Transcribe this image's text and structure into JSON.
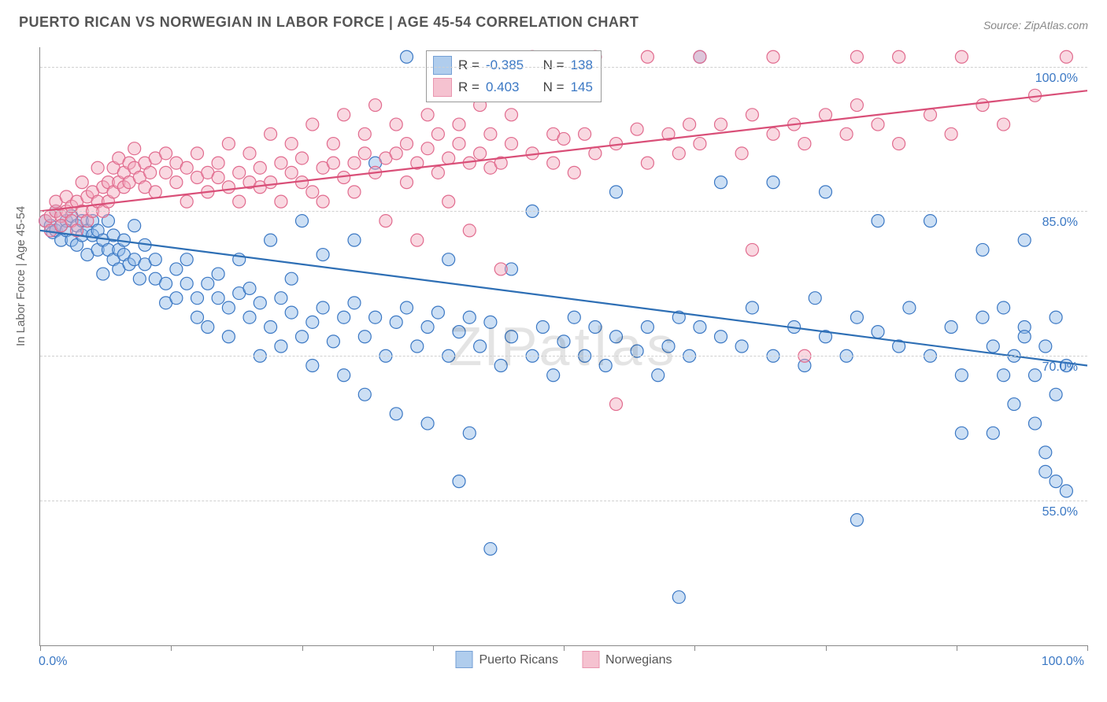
{
  "title": "PUERTO RICAN VS NORWEGIAN IN LABOR FORCE | AGE 45-54 CORRELATION CHART",
  "source": "Source: ZipAtlas.com",
  "ylabel": "In Labor Force | Age 45-54",
  "watermark_a": "ZIP",
  "watermark_b": "atlas",
  "chart": {
    "type": "scatter-with-regression",
    "xlim": [
      0,
      100
    ],
    "ylim": [
      40,
      102
    ],
    "yticks": [
      55.0,
      70.0,
      85.0,
      100.0
    ],
    "ytick_labels": [
      "55.0%",
      "70.0%",
      "85.0%",
      "100.0%"
    ],
    "xtick_positions": [
      0,
      12.5,
      25,
      37.5,
      50,
      62.5,
      75,
      87.5,
      100
    ],
    "xmin_label": "0.0%",
    "xmax_label": "100.0%",
    "background_color": "#ffffff",
    "grid_color": "#d0d0d0",
    "axis_color": "#888888",
    "marker_radius": 8,
    "marker_stroke_width": 1.2,
    "line_width": 2.2,
    "series": [
      {
        "name": "Puerto Ricans",
        "fill": "#8fb8e6",
        "fill_opacity": 0.45,
        "stroke": "#3b78c4",
        "line_color": "#2e6fb5",
        "R": "-0.385",
        "N": "138",
        "regression": {
          "x1": 0,
          "y1": 83.0,
          "x2": 100,
          "y2": 69.0
        },
        "points": [
          [
            0.5,
            84
          ],
          [
            1,
            83.5
          ],
          [
            1.2,
            82.8
          ],
          [
            1.5,
            83
          ],
          [
            1.5,
            85
          ],
          [
            2,
            83.5
          ],
          [
            2,
            82
          ],
          [
            2.5,
            84
          ],
          [
            2.5,
            83
          ],
          [
            3,
            82
          ],
          [
            3,
            84.5
          ],
          [
            3.5,
            83.5
          ],
          [
            3.5,
            81.5
          ],
          [
            4,
            82.5
          ],
          [
            4,
            84
          ],
          [
            4.5,
            83
          ],
          [
            4.5,
            80.5
          ],
          [
            5,
            82.5
          ],
          [
            5,
            84
          ],
          [
            5.5,
            81
          ],
          [
            5.5,
            83
          ],
          [
            6,
            82
          ],
          [
            6,
            78.5
          ],
          [
            6.5,
            81
          ],
          [
            6.5,
            84
          ],
          [
            7,
            80
          ],
          [
            7,
            82.5
          ],
          [
            7.5,
            81
          ],
          [
            7.5,
            79
          ],
          [
            8,
            80.5
          ],
          [
            8,
            82
          ],
          [
            8.5,
            79.5
          ],
          [
            9,
            80
          ],
          [
            9,
            83.5
          ],
          [
            9.5,
            78
          ],
          [
            10,
            79.5
          ],
          [
            10,
            81.5
          ],
          [
            11,
            78
          ],
          [
            11,
            80
          ],
          [
            12,
            77.5
          ],
          [
            12,
            75.5
          ],
          [
            13,
            79
          ],
          [
            13,
            76
          ],
          [
            14,
            77.5
          ],
          [
            14,
            80
          ],
          [
            15,
            76
          ],
          [
            15,
            74
          ],
          [
            16,
            77.5
          ],
          [
            16,
            73
          ],
          [
            17,
            76
          ],
          [
            17,
            78.5
          ],
          [
            18,
            75
          ],
          [
            18,
            72
          ],
          [
            19,
            76.5
          ],
          [
            19,
            80
          ],
          [
            20,
            74
          ],
          [
            20,
            77
          ],
          [
            21,
            75.5
          ],
          [
            21,
            70
          ],
          [
            22,
            73
          ],
          [
            22,
            82
          ],
          [
            23,
            76
          ],
          [
            23,
            71
          ],
          [
            24,
            74.5
          ],
          [
            24,
            78
          ],
          [
            25,
            72
          ],
          [
            25,
            84
          ],
          [
            26,
            73.5
          ],
          [
            26,
            69
          ],
          [
            27,
            75
          ],
          [
            27,
            80.5
          ],
          [
            28,
            71.5
          ],
          [
            29,
            74
          ],
          [
            29,
            68
          ],
          [
            30,
            75.5
          ],
          [
            30,
            82
          ],
          [
            31,
            72
          ],
          [
            31,
            66
          ],
          [
            32,
            74
          ],
          [
            32,
            90
          ],
          [
            33,
            70
          ],
          [
            34,
            73.5
          ],
          [
            34,
            64
          ],
          [
            35,
            75
          ],
          [
            35,
            101
          ],
          [
            36,
            71
          ],
          [
            37,
            73
          ],
          [
            37,
            63
          ],
          [
            38,
            74.5
          ],
          [
            39,
            70
          ],
          [
            39,
            80
          ],
          [
            40,
            72.5
          ],
          [
            40,
            57
          ],
          [
            41,
            74
          ],
          [
            41,
            62
          ],
          [
            42,
            71
          ],
          [
            43,
            73.5
          ],
          [
            43,
            50
          ],
          [
            44,
            69
          ],
          [
            45,
            72
          ],
          [
            45,
            79
          ],
          [
            47,
            70
          ],
          [
            47,
            85
          ],
          [
            48,
            73
          ],
          [
            49,
            68
          ],
          [
            50,
            71.5
          ],
          [
            51,
            74
          ],
          [
            52,
            70
          ],
          [
            53,
            73
          ],
          [
            54,
            69
          ],
          [
            55,
            72
          ],
          [
            55,
            87
          ],
          [
            57,
            70.5
          ],
          [
            58,
            73
          ],
          [
            59,
            68
          ],
          [
            60,
            71
          ],
          [
            61,
            74
          ],
          [
            61,
            45
          ],
          [
            62,
            70
          ],
          [
            63,
            73
          ],
          [
            63,
            101
          ],
          [
            65,
            72
          ],
          [
            65,
            88
          ],
          [
            67,
            71
          ],
          [
            68,
            75
          ],
          [
            70,
            70
          ],
          [
            70,
            88
          ],
          [
            72,
            73
          ],
          [
            73,
            69
          ],
          [
            74,
            76
          ],
          [
            75,
            72
          ],
          [
            75,
            87
          ],
          [
            77,
            70
          ],
          [
            78,
            74
          ],
          [
            78,
            53
          ],
          [
            80,
            72.5
          ],
          [
            80,
            84
          ],
          [
            82,
            71
          ],
          [
            83,
            75
          ],
          [
            85,
            70
          ],
          [
            85,
            84
          ],
          [
            87,
            73
          ],
          [
            88,
            68
          ],
          [
            88,
            62
          ],
          [
            90,
            74
          ],
          [
            90,
            81
          ],
          [
            91,
            71
          ],
          [
            91,
            62
          ],
          [
            92,
            75
          ],
          [
            92,
            68
          ],
          [
            93,
            70
          ],
          [
            93,
            65
          ],
          [
            94,
            73
          ],
          [
            94,
            72
          ],
          [
            94,
            82
          ],
          [
            95,
            68
          ],
          [
            95,
            63
          ],
          [
            96,
            71
          ],
          [
            96,
            58
          ],
          [
            96,
            60
          ],
          [
            97,
            74
          ],
          [
            97,
            57
          ],
          [
            97,
            66
          ],
          [
            98,
            69
          ],
          [
            98,
            56
          ]
        ]
      },
      {
        "name": "Norwegians",
        "fill": "#f2a9bd",
        "fill_opacity": 0.45,
        "stroke": "#e16b8e",
        "line_color": "#d94f78",
        "R": "0.403",
        "N": "145",
        "regression": {
          "x1": 0,
          "y1": 85.0,
          "x2": 100,
          "y2": 97.5
        },
        "points": [
          [
            0.5,
            84
          ],
          [
            1,
            84.5
          ],
          [
            1,
            83
          ],
          [
            1.5,
            85
          ],
          [
            1.5,
            86
          ],
          [
            2,
            84.5
          ],
          [
            2,
            83.5
          ],
          [
            2.5,
            85
          ],
          [
            2.5,
            86.5
          ],
          [
            3,
            84
          ],
          [
            3,
            85.5
          ],
          [
            3.5,
            86
          ],
          [
            3.5,
            83
          ],
          [
            4,
            85
          ],
          [
            4,
            88
          ],
          [
            4.5,
            86.5
          ],
          [
            4.5,
            84
          ],
          [
            5,
            87
          ],
          [
            5,
            85
          ],
          [
            5.5,
            86
          ],
          [
            5.5,
            89.5
          ],
          [
            6,
            87.5
          ],
          [
            6,
            85
          ],
          [
            6.5,
            88
          ],
          [
            6.5,
            86
          ],
          [
            7,
            89.5
          ],
          [
            7,
            87
          ],
          [
            7.5,
            88
          ],
          [
            7.5,
            90.5
          ],
          [
            8,
            87.5
          ],
          [
            8,
            89
          ],
          [
            8.5,
            90
          ],
          [
            8.5,
            88
          ],
          [
            9,
            89.5
          ],
          [
            9,
            91.5
          ],
          [
            9.5,
            88.5
          ],
          [
            10,
            90
          ],
          [
            10,
            87.5
          ],
          [
            10.5,
            89
          ],
          [
            11,
            90.5
          ],
          [
            11,
            87
          ],
          [
            12,
            89
          ],
          [
            12,
            91
          ],
          [
            13,
            88
          ],
          [
            13,
            90
          ],
          [
            14,
            89.5
          ],
          [
            14,
            86
          ],
          [
            15,
            88.5
          ],
          [
            15,
            91
          ],
          [
            16,
            87
          ],
          [
            16,
            89
          ],
          [
            17,
            88.5
          ],
          [
            17,
            90
          ],
          [
            18,
            87.5
          ],
          [
            18,
            92
          ],
          [
            19,
            89
          ],
          [
            19,
            86
          ],
          [
            20,
            88
          ],
          [
            20,
            91
          ],
          [
            21,
            87.5
          ],
          [
            21,
            89.5
          ],
          [
            22,
            88
          ],
          [
            22,
            93
          ],
          [
            23,
            90
          ],
          [
            23,
            86
          ],
          [
            24,
            89
          ],
          [
            24,
            92
          ],
          [
            25,
            88
          ],
          [
            25,
            90.5
          ],
          [
            26,
            87
          ],
          [
            26,
            94
          ],
          [
            27,
            89.5
          ],
          [
            27,
            86
          ],
          [
            28,
            90
          ],
          [
            28,
            92
          ],
          [
            29,
            88.5
          ],
          [
            29,
            95
          ],
          [
            30,
            90
          ],
          [
            30,
            87
          ],
          [
            31,
            91
          ],
          [
            31,
            93
          ],
          [
            32,
            89
          ],
          [
            32,
            96
          ],
          [
            33,
            90.5
          ],
          [
            33,
            84
          ],
          [
            34,
            91
          ],
          [
            34,
            94
          ],
          [
            35,
            88
          ],
          [
            35,
            92
          ],
          [
            36,
            90
          ],
          [
            36,
            82
          ],
          [
            37,
            91.5
          ],
          [
            37,
            95
          ],
          [
            38,
            89
          ],
          [
            38,
            93
          ],
          [
            39,
            90.5
          ],
          [
            39,
            86
          ],
          [
            40,
            92
          ],
          [
            40,
            94
          ],
          [
            41,
            90
          ],
          [
            41,
            83
          ],
          [
            42,
            91
          ],
          [
            42,
            96
          ],
          [
            43,
            89.5
          ],
          [
            43,
            93
          ],
          [
            44,
            90
          ],
          [
            44,
            79
          ],
          [
            45,
            92
          ],
          [
            45,
            95
          ],
          [
            47,
            91
          ],
          [
            47,
            101
          ],
          [
            49,
            90
          ],
          [
            49,
            93
          ],
          [
            50,
            92.5
          ],
          [
            51,
            89
          ],
          [
            52,
            93
          ],
          [
            53,
            91
          ],
          [
            53,
            101
          ],
          [
            55,
            92
          ],
          [
            55,
            65
          ],
          [
            57,
            93.5
          ],
          [
            58,
            90
          ],
          [
            58,
            101
          ],
          [
            60,
            93
          ],
          [
            61,
            91
          ],
          [
            62,
            94
          ],
          [
            63,
            92
          ],
          [
            63,
            101
          ],
          [
            65,
            94
          ],
          [
            67,
            91
          ],
          [
            68,
            95
          ],
          [
            68,
            81
          ],
          [
            70,
            93
          ],
          [
            70,
            101
          ],
          [
            72,
            94
          ],
          [
            73,
            92
          ],
          [
            73,
            70
          ],
          [
            75,
            95
          ],
          [
            77,
            93
          ],
          [
            78,
            96
          ],
          [
            78,
            101
          ],
          [
            80,
            94
          ],
          [
            82,
            92
          ],
          [
            82,
            101
          ],
          [
            85,
            95
          ],
          [
            87,
            93
          ],
          [
            88,
            101
          ],
          [
            90,
            96
          ],
          [
            92,
            94
          ],
          [
            95,
            97
          ],
          [
            98,
            101
          ]
        ]
      }
    ]
  },
  "legend": {
    "items": [
      {
        "label": "Puerto Ricans",
        "fill": "#8fb8e6",
        "stroke": "#3b78c4"
      },
      {
        "label": "Norwegians",
        "fill": "#f2a9bd",
        "stroke": "#e16b8e"
      }
    ]
  }
}
